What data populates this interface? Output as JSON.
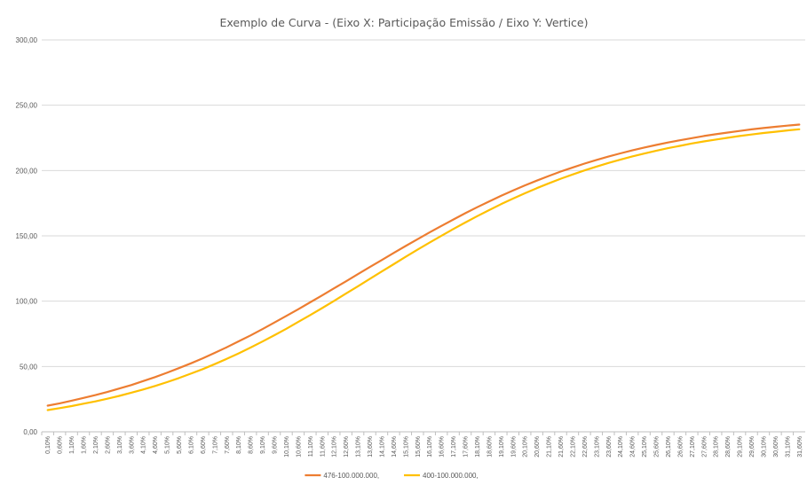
{
  "chart_data": {
    "type": "line",
    "title": "Exemplo de Curva - (Eixo X: Participação Emissão / Eixo Y: Vertice)",
    "xlabel": "",
    "ylabel": "",
    "ylim": [
      0,
      300
    ],
    "yticks": [
      "0,00",
      "50,00",
      "100,00",
      "150,00",
      "200,00",
      "250,00",
      "300,00"
    ],
    "grid": true,
    "legend_position": "bottom",
    "x": [
      "0,10%",
      "0,60%",
      "1,10%",
      "1,60%",
      "2,10%",
      "2,60%",
      "3,10%",
      "3,60%",
      "4,10%",
      "4,60%",
      "5,10%",
      "5,60%",
      "6,10%",
      "6,60%",
      "7,10%",
      "7,60%",
      "8,10%",
      "8,60%",
      "9,10%",
      "9,60%",
      "10,10%",
      "10,60%",
      "11,10%",
      "11,60%",
      "12,10%",
      "12,60%",
      "13,10%",
      "13,60%",
      "14,10%",
      "14,60%",
      "15,10%",
      "15,60%",
      "16,10%",
      "16,60%",
      "17,10%",
      "17,60%",
      "18,10%",
      "18,60%",
      "19,10%",
      "19,60%",
      "20,10%",
      "20,60%",
      "21,10%",
      "21,60%",
      "22,10%",
      "22,60%",
      "23,10%",
      "23,60%",
      "24,10%",
      "24,60%",
      "25,10%",
      "25,60%",
      "26,10%",
      "26,60%",
      "27,10%",
      "27,60%",
      "28,10%",
      "28,60%",
      "29,10%",
      "29,60%",
      "30,10%",
      "30,60%",
      "31,10%",
      "31,60%"
    ],
    "series": [
      {
        "name": "476-100.000.000,",
        "color": "#ED7D31",
        "values": [
          20.0,
          21.8,
          23.8,
          25.9,
          28.1,
          30.5,
          33.1,
          35.8,
          38.8,
          41.9,
          45.2,
          48.7,
          52.4,
          56.3,
          60.4,
          64.7,
          69.2,
          73.8,
          78.6,
          83.6,
          88.7,
          93.8,
          99.1,
          104.4,
          109.8,
          115.2,
          120.7,
          126.1,
          131.5,
          136.9,
          142.2,
          147.4,
          152.6,
          157.6,
          162.5,
          167.3,
          171.9,
          176.3,
          180.6,
          184.7,
          188.6,
          192.3,
          195.8,
          199.2,
          202.3,
          205.3,
          208.1,
          210.7,
          213.1,
          215.4,
          217.6,
          219.6,
          221.5,
          223.2,
          224.8,
          226.4,
          227.8,
          229.1,
          230.3,
          231.5,
          232.5,
          233.5,
          234.4,
          235.2
        ]
      },
      {
        "name": "400-100.000.000,",
        "color": "#FFC000",
        "values": [
          16.6,
          18.1,
          19.7,
          21.5,
          23.3,
          25.3,
          27.5,
          29.9,
          32.4,
          35.1,
          38.0,
          41.1,
          44.5,
          48.0,
          51.8,
          55.8,
          60.0,
          64.5,
          69.1,
          73.9,
          78.9,
          84.1,
          89.3,
          94.7,
          100.2,
          105.8,
          111.4,
          117.0,
          122.7,
          128.3,
          133.9,
          139.4,
          144.8,
          150.1,
          155.2,
          160.2,
          165.1,
          169.7,
          174.2,
          178.5,
          182.6,
          186.5,
          190.2,
          193.7,
          197.0,
          200.1,
          203.0,
          205.8,
          208.3,
          210.8,
          213.0,
          215.1,
          217.1,
          218.9,
          220.7,
          222.3,
          223.7,
          225.1,
          226.4,
          227.6,
          228.7,
          229.7,
          230.7,
          231.6
        ]
      }
    ]
  }
}
